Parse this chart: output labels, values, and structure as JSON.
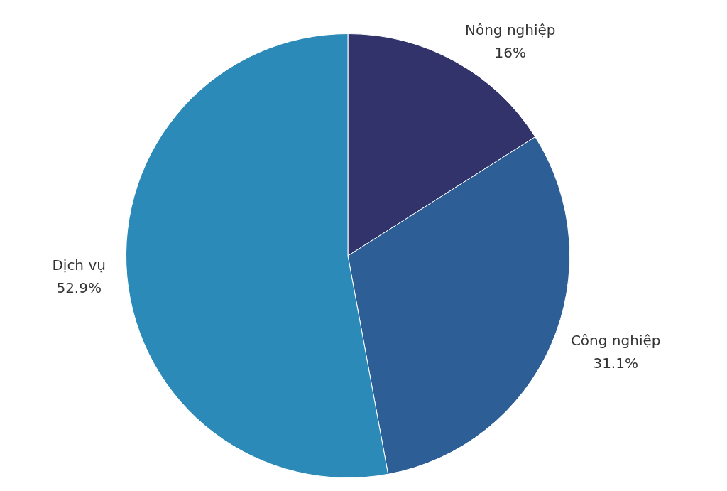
{
  "chart_data": {
    "type": "pie",
    "categories": [
      "Nông nghiệp",
      "Công nghiệp",
      "Dịch vụ"
    ],
    "values": [
      16,
      31.1,
      52.9
    ],
    "colors": [
      "#31336a",
      "#2e5e96",
      "#2b8ab8"
    ],
    "value_labels": [
      "16%",
      "31.1%",
      "52.9%"
    ],
    "legend": false
  }
}
